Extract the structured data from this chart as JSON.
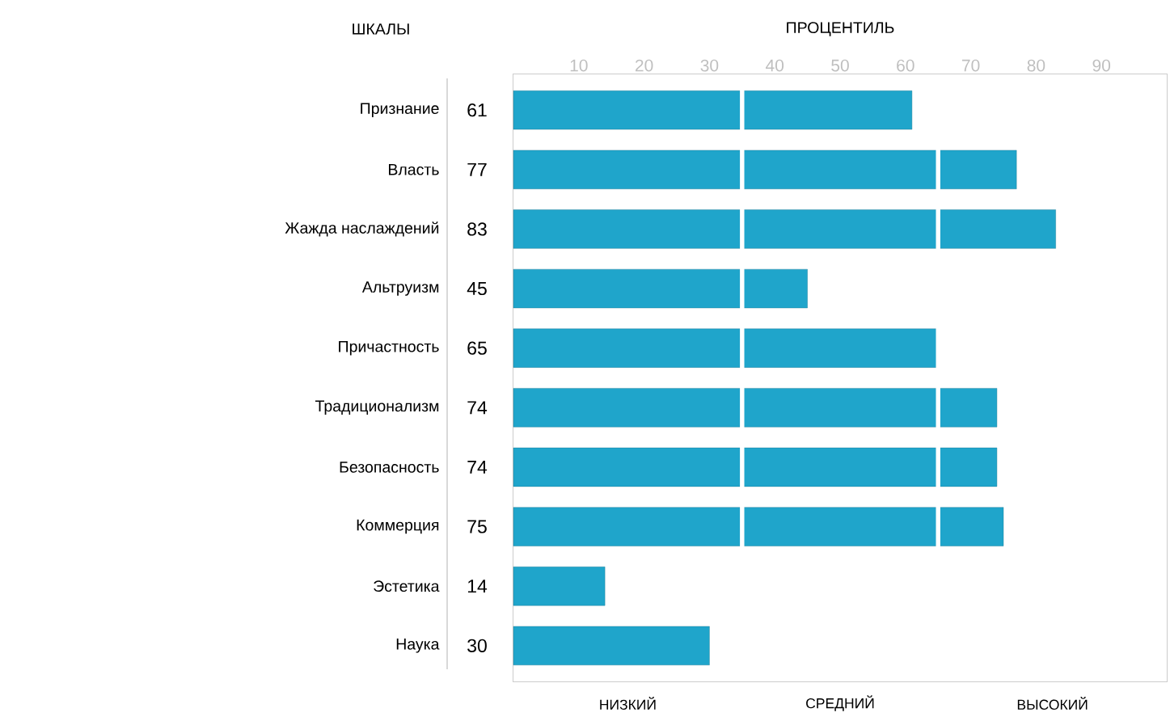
{
  "chart_data": {
    "type": "bar",
    "orientation": "horizontal",
    "xlabel": "ПРОЦЕНТИЛЬ",
    "ylabel": "ШКАЛЫ",
    "categories": [
      "Признание",
      "Власть",
      "Жажда наслаждений",
      "Альтруизм",
      "Причастность",
      "Традиционализм",
      "Безопасность",
      "Коммерция",
      "Эстетика",
      "Наука"
    ],
    "values": [
      61,
      77,
      83,
      45,
      65,
      74,
      74,
      75,
      14,
      30
    ],
    "color": "#1fa5cb",
    "xlim": [
      0,
      100
    ],
    "xticks": [
      10,
      20,
      30,
      40,
      50,
      60,
      70,
      80,
      90
    ],
    "data_labels": true,
    "bands": [
      {
        "axis": "x",
        "from": 0,
        "to": 35,
        "label": "НИЗКИЙ",
        "color": "#ffffff"
      },
      {
        "axis": "x",
        "from": 35,
        "to": 65,
        "label": "СРЕДНИЙ",
        "color": "#ffffff"
      },
      {
        "axis": "x",
        "from": 65,
        "to": 100,
        "label": "ВЫСОКИЙ",
        "color": "#ffffff"
      }
    ]
  }
}
